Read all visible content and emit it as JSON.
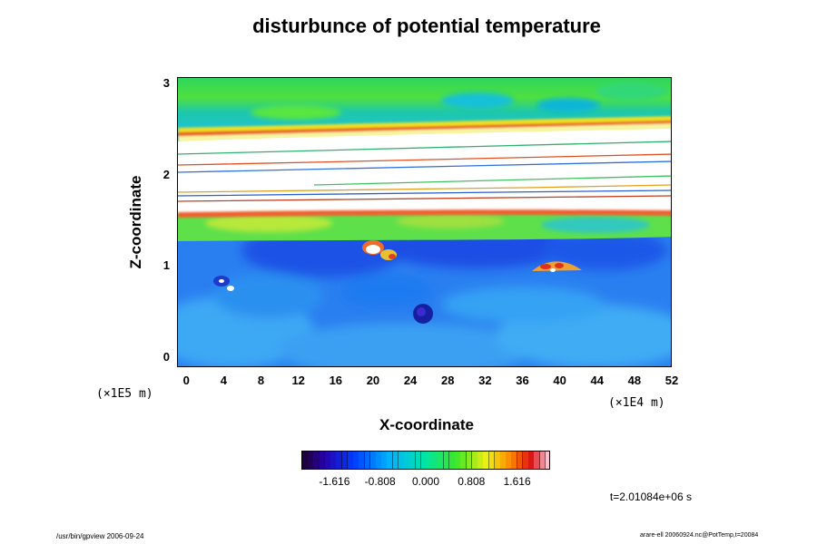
{
  "chart_data": {
    "type": "heatmap",
    "title": "disturbunce of potential temperature",
    "xlabel": "X-coordinate",
    "ylabel": "Z-coordinate",
    "x_factor": "(×1E4 m)",
    "y_factor": "(×1E5 m)",
    "xlim": [
      -1,
      52
    ],
    "ylim": [
      -0.1,
      3.1
    ],
    "x_ticks": [
      0,
      4,
      8,
      12,
      16,
      20,
      24,
      28,
      32,
      36,
      40,
      44,
      48,
      52
    ],
    "y_ticks": [
      0,
      1,
      2,
      3
    ],
    "colorbar": {
      "ticks": [
        "-1.616",
        "-0.808",
        "0.000",
        "0.808",
        "1.616"
      ],
      "range": [
        -2.2,
        2.2
      ]
    },
    "annotation": "t=2.01084e+06 s",
    "grid": false
  },
  "footer": {
    "left": "/usr/bin/gpview 2006-09-24",
    "right": "arare-ell 20060924.nc@PotTemp,t=20084"
  },
  "colors": {
    "background": "#ffffff",
    "field_base": "#2a7ff0",
    "saturated": "#ffffff"
  }
}
